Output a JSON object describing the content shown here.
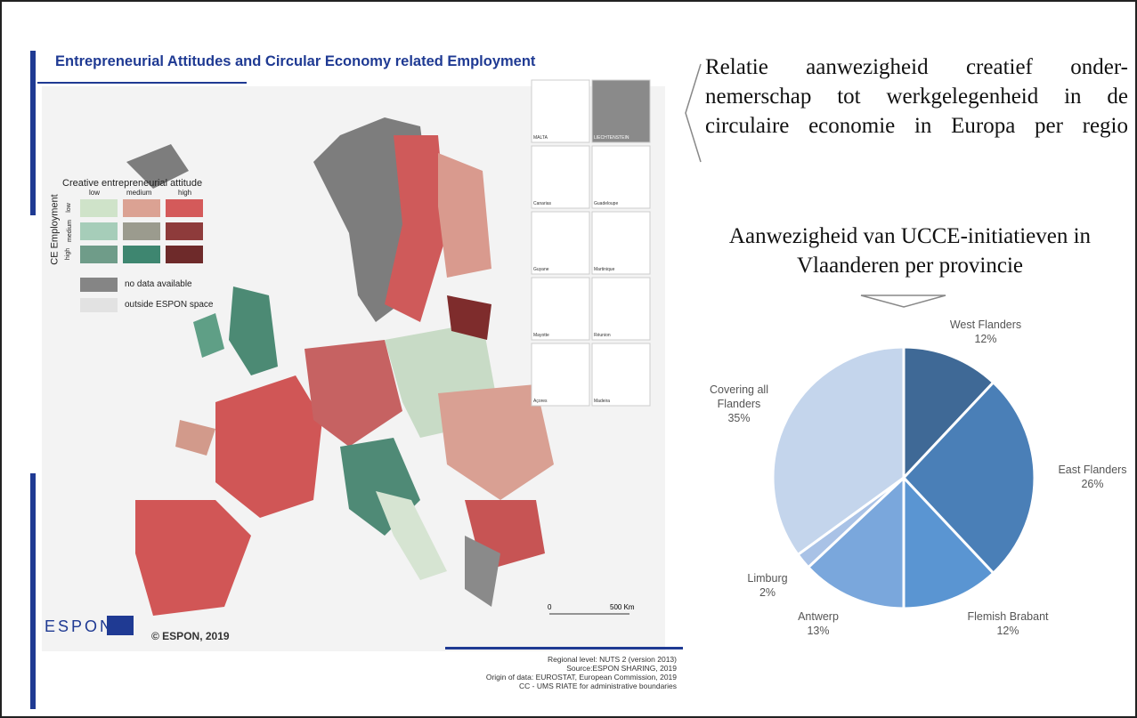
{
  "map": {
    "title": "Entrepreneurial Attitudes and Circular Economy related Employment",
    "legend": {
      "title": "Creative entrepreneurial attitude",
      "columns": [
        "low",
        "medium",
        "high"
      ],
      "axis_title": "CE Employment",
      "rows": [
        "low",
        "medium",
        "high"
      ],
      "no_data": "no data available",
      "outside": "outside ESPON space"
    },
    "insets": [
      "MALTA",
      "LIECHTENSTEIN",
      "Canarias",
      "Guadeloupe",
      "Guyane",
      "Martinique",
      "Mayotte",
      "Réunion",
      "Açores",
      "Madeira"
    ],
    "scale": [
      "0",
      "500 Km"
    ],
    "logo": "ESPON",
    "copyright": "© ESPON, 2019",
    "credits": [
      "Regional level: NUTS 2 (version 2013)",
      "Source:ESPON SHARING, 2019",
      "Origin of data: EUROSTAT, European Commission, 2019",
      "CC - UMS RIATE for administrative boundaries"
    ]
  },
  "caption": [
    "Relatie aanwezigheid creatief onder-",
    "nemerschap tot werkgelegenheid in de",
    "circulaire economie in Europa per regio"
  ],
  "chart_data": {
    "type": "pie",
    "title": [
      "Aanwezigheid van UCCE-initiatieven in",
      "Vlaanderen per provincie"
    ],
    "categories": [
      "West Flanders",
      "East Flanders",
      "Flemish Brabant",
      "Antwerp",
      "Limburg",
      "Covering all Flanders"
    ],
    "values": [
      12,
      26,
      12,
      13,
      2,
      35
    ],
    "value_labels": [
      "12%",
      "26%",
      "12%",
      "13%",
      "2%",
      "35%"
    ],
    "colors": [
      "#3f6996",
      "#4a7fb7",
      "#5a95d2",
      "#7aa7dc",
      "#a9c2e6",
      "#c4d5ec"
    ]
  }
}
